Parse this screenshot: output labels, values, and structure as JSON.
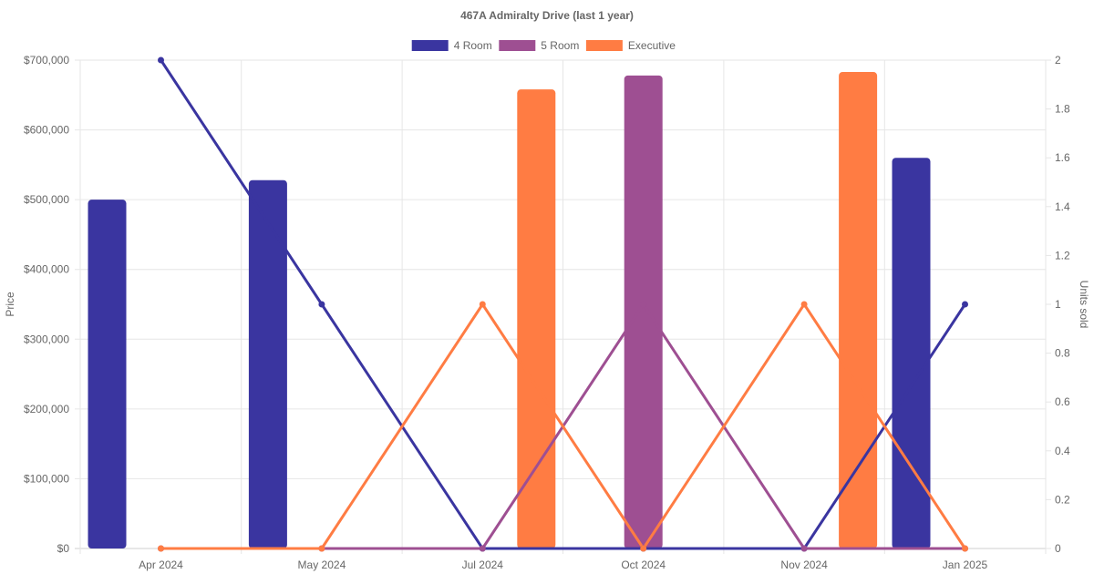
{
  "chart_data": {
    "type": "bar",
    "title": "467A Admiralty Drive (last 1 year)",
    "categories": [
      "Apr 2024",
      "May 2024",
      "Jul 2024",
      "Oct 2024",
      "Nov 2024",
      "Jan 2025"
    ],
    "ylabel": "Price",
    "y2label": "Units sold",
    "ylim": [
      0,
      700000
    ],
    "y2lim": [
      0,
      2
    ],
    "y_ticks": [
      "$0",
      "$100,000",
      "$200,000",
      "$300,000",
      "$400,000",
      "$500,000",
      "$600,000",
      "$700,000"
    ],
    "y2_ticks": [
      "0",
      "0.2",
      "0.4",
      "0.6",
      "0.8",
      "1",
      "1.2",
      "1.4",
      "1.6",
      "1.8",
      "2"
    ],
    "grid": true,
    "legend_position": "top-center",
    "series": [
      {
        "name": "4 Room",
        "color": "#3a35a0",
        "price": [
          500000,
          528000,
          null,
          null,
          null,
          560000
        ],
        "units": [
          2,
          1,
          0,
          0,
          0,
          1
        ]
      },
      {
        "name": "5 Room",
        "color": "#9e4f92",
        "price": [
          null,
          null,
          null,
          678000,
          null,
          null
        ],
        "units": [
          0,
          0,
          0,
          1,
          0,
          0
        ]
      },
      {
        "name": "Executive",
        "color": "#ff7c43",
        "price": [
          null,
          null,
          658000,
          null,
          683000,
          null
        ],
        "units": [
          0,
          0,
          1,
          0,
          1,
          0
        ]
      }
    ]
  }
}
